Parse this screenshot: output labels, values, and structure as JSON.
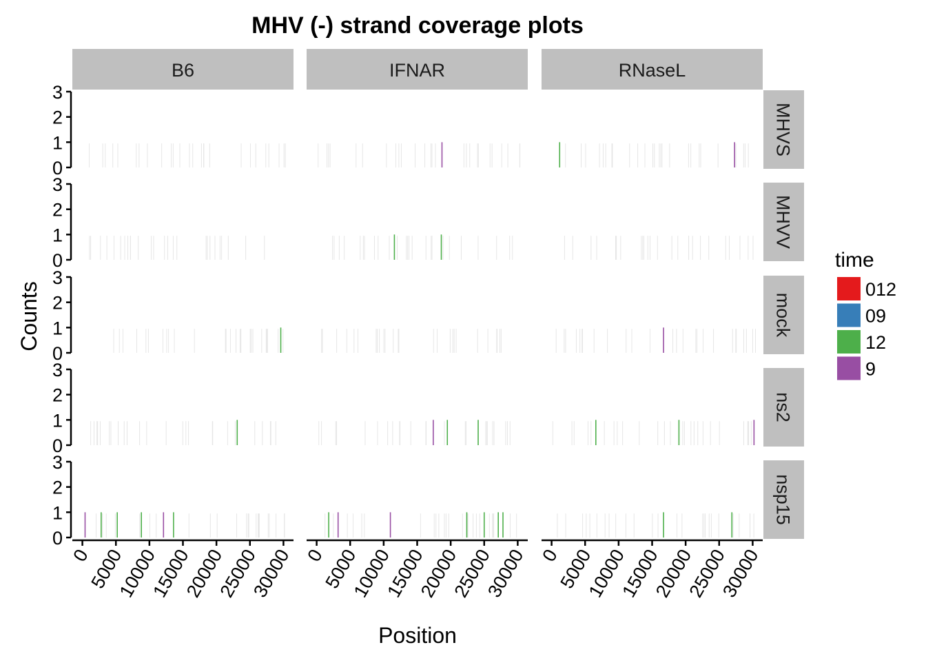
{
  "chart_data": {
    "type": "bar",
    "title": "MHV (-) strand coverage plots",
    "xlabel": "Position",
    "ylabel": "Counts",
    "xlim": [
      -1500,
      31500
    ],
    "ylim": [
      0,
      3
    ],
    "x_ticks": [
      0,
      5000,
      10000,
      15000,
      20000,
      25000,
      30000
    ],
    "x_tick_labels": [
      "0",
      "5000",
      "10000",
      "15000",
      "20000",
      "25000",
      "30000"
    ],
    "y_ticks": [
      0,
      1,
      2,
      3
    ],
    "y_tick_labels": [
      "0",
      "1",
      "2",
      "3"
    ],
    "grid": false,
    "legend": {
      "title": "time",
      "position": "right",
      "entries": [
        {
          "label": "012",
          "color": "#e41a1c"
        },
        {
          "label": "09",
          "color": "#377eb8"
        },
        {
          "label": "12",
          "color": "#4daf4a"
        },
        {
          "label": "9",
          "color": "#984ea3"
        }
      ]
    },
    "columns": [
      "B6",
      "IFNAR",
      "RNaseL"
    ],
    "rows": [
      "MHVS",
      "MHVV",
      "mock",
      "ns2",
      "nsp15"
    ],
    "series": [
      {
        "row": "MHVS",
        "column": "IFNAR",
        "time": "9",
        "x": [
          18700
        ],
        "y": [
          1
        ]
      },
      {
        "row": "MHVS",
        "column": "RNaseL",
        "time": "12",
        "x": [
          1200
        ],
        "y": [
          1
        ]
      },
      {
        "row": "MHVS",
        "column": "RNaseL",
        "time": "9",
        "x": [
          27300
        ],
        "y": [
          1
        ]
      },
      {
        "row": "MHVV",
        "column": "IFNAR",
        "time": "12",
        "x": [
          11600,
          18600
        ],
        "y": [
          1,
          1
        ]
      },
      {
        "row": "mock",
        "column": "B6",
        "time": "12",
        "x": [
          29600
        ],
        "y": [
          1
        ]
      },
      {
        "row": "mock",
        "column": "RNaseL",
        "time": "9",
        "x": [
          16700
        ],
        "y": [
          1
        ]
      },
      {
        "row": "ns2",
        "column": "B6",
        "time": "12",
        "x": [
          23100
        ],
        "y": [
          1
        ]
      },
      {
        "row": "ns2",
        "column": "IFNAR",
        "time": "9",
        "x": [
          17400
        ],
        "y": [
          1
        ]
      },
      {
        "row": "ns2",
        "column": "IFNAR",
        "time": "12",
        "x": [
          19500,
          24100
        ],
        "y": [
          1,
          1
        ]
      },
      {
        "row": "ns2",
        "column": "RNaseL",
        "time": "12",
        "x": [
          6600,
          19000
        ],
        "y": [
          1,
          1
        ]
      },
      {
        "row": "ns2",
        "column": "RNaseL",
        "time": "9",
        "x": [
          30200
        ],
        "y": [
          1
        ]
      },
      {
        "row": "nsp15",
        "column": "B6",
        "time": "9",
        "x": [
          400,
          12100
        ],
        "y": [
          1,
          1
        ]
      },
      {
        "row": "nsp15",
        "column": "B6",
        "time": "12",
        "x": [
          2800,
          5200,
          8800,
          13600
        ],
        "y": [
          1,
          1,
          1,
          1
        ]
      },
      {
        "row": "nsp15",
        "column": "IFNAR",
        "time": "12",
        "x": [
          1800,
          22400,
          25000,
          27100,
          27800
        ],
        "y": [
          1,
          1,
          1,
          1,
          1
        ]
      },
      {
        "row": "nsp15",
        "column": "IFNAR",
        "time": "9",
        "x": [
          3200,
          11000
        ],
        "y": [
          1,
          1
        ]
      },
      {
        "row": "nsp15",
        "column": "RNaseL",
        "time": "12",
        "x": [
          16700,
          26900
        ],
        "y": [
          1,
          1
        ]
      }
    ]
  }
}
